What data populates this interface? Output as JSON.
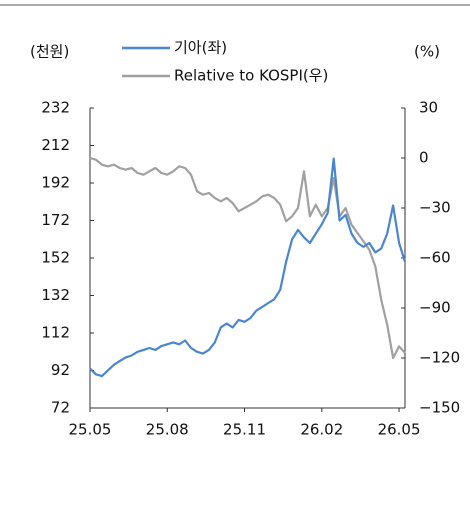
{
  "chart_data": {
    "type": "line",
    "y_unit": "(천원)",
    "y2_unit": "(%)",
    "x": [
      0,
      1,
      2,
      3,
      4,
      5,
      6,
      7,
      8,
      9,
      10,
      11,
      12,
      13,
      14,
      15,
      16,
      17,
      18,
      19,
      20,
      21,
      22,
      23,
      24,
      25,
      26,
      27,
      28,
      29,
      30,
      31,
      32,
      33,
      34,
      35,
      36,
      37,
      38,
      39,
      40,
      41,
      42,
      43,
      44,
      45,
      46,
      47,
      48,
      49,
      50,
      51,
      52,
      53
    ],
    "xlim": [
      0,
      53
    ],
    "xticks": [
      {
        "value": 0,
        "label": "25.05"
      },
      {
        "value": 13,
        "label": "25.08"
      },
      {
        "value": 26,
        "label": "25.11"
      },
      {
        "value": 39,
        "label": "26.02"
      },
      {
        "value": 52,
        "label": "26.05"
      }
    ],
    "ylim": [
      72,
      232
    ],
    "yticks": [
      72,
      92,
      112,
      132,
      152,
      172,
      192,
      212,
      232
    ],
    "y2lim": [
      -150,
      30
    ],
    "y2ticks": [
      {
        "value": -150,
        "label": "−150"
      },
      {
        "value": -120,
        "label": "−120"
      },
      {
        "value": -90,
        "label": "−90"
      },
      {
        "value": -60,
        "label": "−60"
      },
      {
        "value": -30,
        "label": "−30"
      },
      0,
      30
    ],
    "series": [
      {
        "name": "기아(좌)",
        "color": "#4a86d0",
        "axis": "y",
        "values": [
          93,
          90,
          89,
          92,
          95,
          97,
          99,
          100,
          102,
          103,
          104,
          103,
          105,
          106,
          107,
          106,
          108,
          104,
          102,
          101,
          103,
          107,
          115,
          117,
          115,
          119,
          118,
          120,
          124,
          126,
          128,
          130,
          135,
          150,
          162,
          167,
          163,
          160,
          165,
          170,
          176,
          205,
          172,
          175,
          165,
          160,
          158,
          160,
          155,
          157,
          165,
          180,
          160,
          150
        ]
      },
      {
        "name": "Relative to KOSPI(우)",
        "color": "#a0a0a0",
        "axis": "y2",
        "values": [
          0,
          -1,
          -4,
          -5,
          -4,
          -6,
          -7,
          -6,
          -9,
          -10,
          -8,
          -6,
          -9,
          -10,
          -8,
          -5,
          -6,
          -10,
          -20,
          -22,
          -21,
          -24,
          -26,
          -24,
          -27,
          -32,
          -30,
          -28,
          -26,
          -23,
          -22,
          -24,
          -28,
          -38,
          -35,
          -30,
          -8,
          -35,
          -28,
          -35,
          -30,
          -12,
          -35,
          -30,
          -40,
          -45,
          -50,
          -55,
          -65,
          -85,
          -100,
          -120,
          -113,
          -117
        ]
      }
    ]
  }
}
